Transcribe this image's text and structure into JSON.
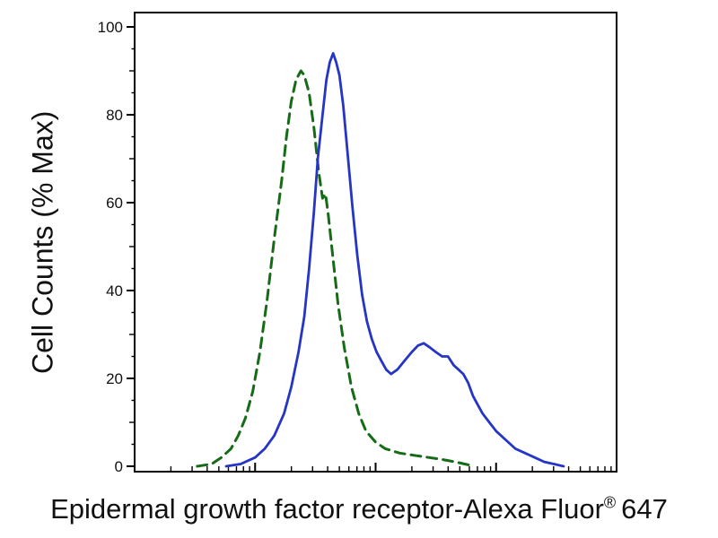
{
  "chart_data": {
    "type": "line",
    "subtype": "flow-cytometry-histogram",
    "title": "",
    "xlabel": "Epidermal growth factor receptor-Alexa Fluor® 647",
    "xlabel_parts": {
      "main": "Epidermal growth factor receptor-Alexa Fluor",
      "sup": "®",
      "tail": "647"
    },
    "ylabel": "Cell Counts (% Max)",
    "axis_color": "#000000",
    "grid": "off",
    "legend": "none",
    "y_axis": {
      "min": 0,
      "max": 100,
      "major_ticks": [
        0,
        20,
        40,
        60,
        80,
        100
      ],
      "minor_tick_step": 5
    },
    "x_axis": {
      "scale": "log",
      "decades": 4,
      "tick_labels": []
    },
    "series": [
      {
        "name": "green-dashed-histogram",
        "color": "#166b16",
        "style": "dashed",
        "stroke_width": 3,
        "peak": {
          "x_fraction": 0.345,
          "y": 90
        },
        "points": [
          [
            0.13,
            0
          ],
          [
            0.16,
            0.5
          ],
          [
            0.18,
            2
          ],
          [
            0.2,
            4
          ],
          [
            0.215,
            7
          ],
          [
            0.23,
            11
          ],
          [
            0.245,
            17
          ],
          [
            0.26,
            26
          ],
          [
            0.275,
            38
          ],
          [
            0.29,
            52
          ],
          [
            0.305,
            65
          ],
          [
            0.315,
            75
          ],
          [
            0.325,
            83
          ],
          [
            0.335,
            88
          ],
          [
            0.345,
            90
          ],
          [
            0.352,
            89
          ],
          [
            0.362,
            85
          ],
          [
            0.372,
            77
          ],
          [
            0.382,
            67
          ],
          [
            0.39,
            61
          ],
          [
            0.396,
            62
          ],
          [
            0.402,
            57
          ],
          [
            0.412,
            47
          ],
          [
            0.422,
            37
          ],
          [
            0.435,
            27
          ],
          [
            0.45,
            18
          ],
          [
            0.465,
            12
          ],
          [
            0.48,
            8
          ],
          [
            0.5,
            5.5
          ],
          [
            0.52,
            4
          ],
          [
            0.55,
            3
          ],
          [
            0.58,
            2.5
          ],
          [
            0.61,
            2
          ],
          [
            0.64,
            1.5
          ],
          [
            0.665,
            1
          ],
          [
            0.685,
            0.5
          ],
          [
            0.705,
            0
          ]
        ]
      },
      {
        "name": "blue-solid-histogram",
        "color": "#2535c5",
        "style": "solid",
        "stroke_width": 2.8,
        "peak": {
          "x_fraction": 0.412,
          "y": 94
        },
        "points": [
          [
            0.19,
            0
          ],
          [
            0.22,
            0.5
          ],
          [
            0.25,
            2
          ],
          [
            0.27,
            4
          ],
          [
            0.29,
            7
          ],
          [
            0.31,
            12
          ],
          [
            0.325,
            18
          ],
          [
            0.34,
            26
          ],
          [
            0.352,
            34
          ],
          [
            0.362,
            45
          ],
          [
            0.372,
            58
          ],
          [
            0.38,
            70
          ],
          [
            0.39,
            80
          ],
          [
            0.398,
            88
          ],
          [
            0.405,
            92
          ],
          [
            0.412,
            94
          ],
          [
            0.418,
            92
          ],
          [
            0.425,
            89
          ],
          [
            0.433,
            82
          ],
          [
            0.442,
            71
          ],
          [
            0.452,
            59
          ],
          [
            0.462,
            48
          ],
          [
            0.472,
            39
          ],
          [
            0.482,
            33
          ],
          [
            0.492,
            29
          ],
          [
            0.502,
            26
          ],
          [
            0.512,
            24
          ],
          [
            0.522,
            22
          ],
          [
            0.532,
            21
          ],
          [
            0.545,
            22
          ],
          [
            0.56,
            24
          ],
          [
            0.575,
            26
          ],
          [
            0.588,
            27.5
          ],
          [
            0.6,
            28
          ],
          [
            0.613,
            27
          ],
          [
            0.625,
            26
          ],
          [
            0.638,
            25
          ],
          [
            0.65,
            25
          ],
          [
            0.662,
            23
          ],
          [
            0.672,
            22
          ],
          [
            0.682,
            21
          ],
          [
            0.692,
            19
          ],
          [
            0.702,
            16
          ],
          [
            0.712,
            14
          ],
          [
            0.722,
            12
          ],
          [
            0.736,
            10
          ],
          [
            0.75,
            8
          ],
          [
            0.77,
            6
          ],
          [
            0.79,
            4
          ],
          [
            0.81,
            3
          ],
          [
            0.83,
            2
          ],
          [
            0.85,
            1
          ],
          [
            0.87,
            0.5
          ],
          [
            0.89,
            0
          ]
        ]
      }
    ]
  }
}
